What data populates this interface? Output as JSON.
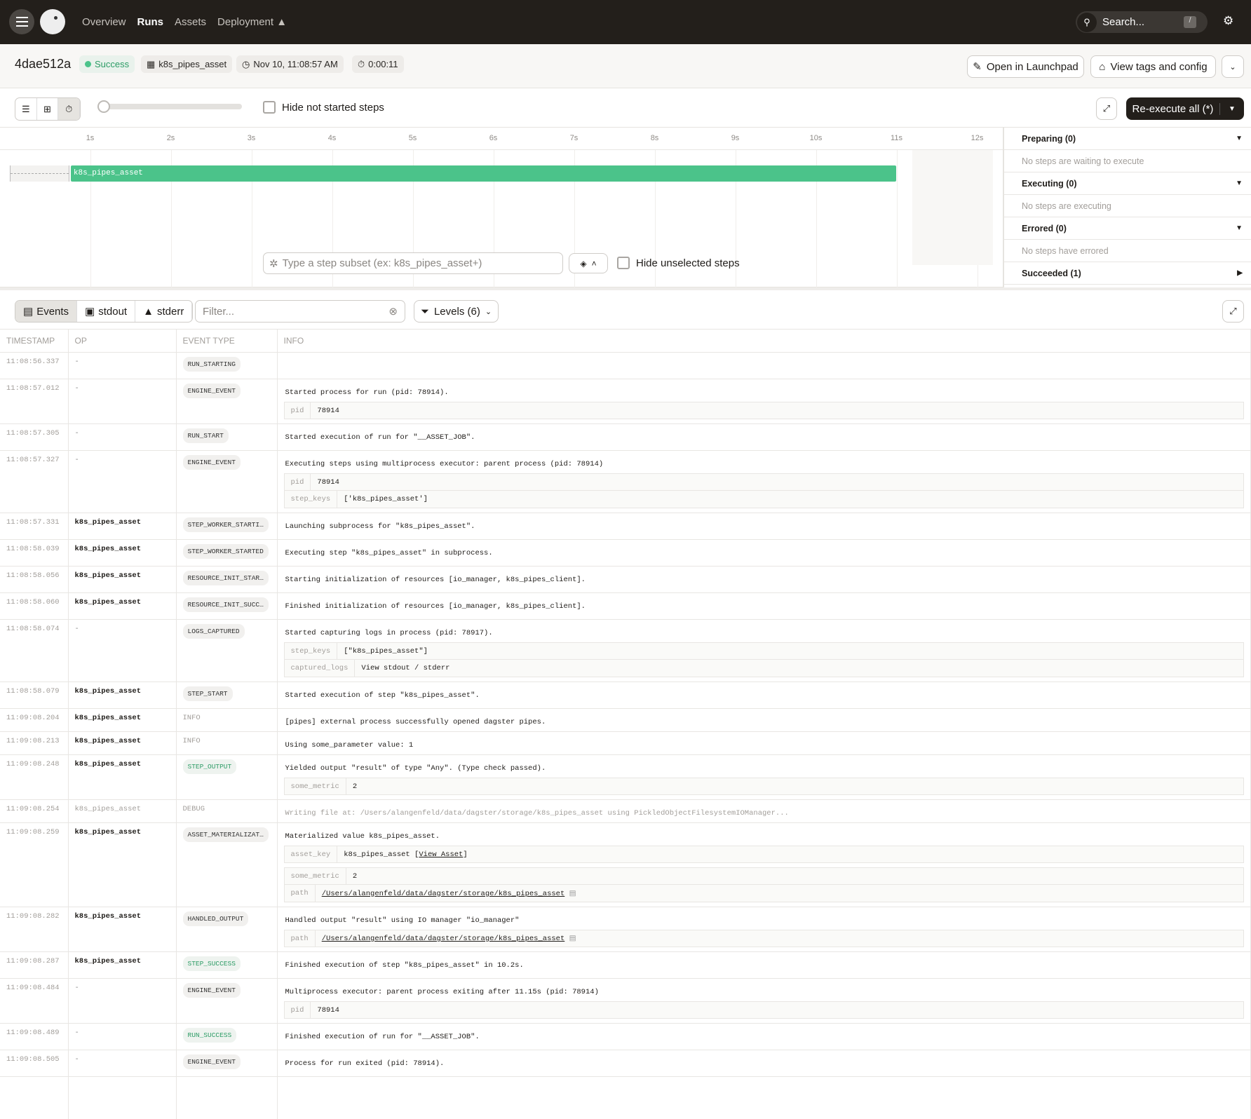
{
  "nav": {
    "links": [
      "Overview",
      "Runs",
      "Assets",
      "Deployment"
    ],
    "active": "Runs",
    "search_placeholder": "Search...",
    "search_shortcut": "/"
  },
  "run": {
    "id": "4dae512a",
    "status": "Success",
    "job": "k8s_pipes_asset",
    "started": "Nov 10, 11:08:57 AM",
    "duration": "0:00:11"
  },
  "actions": {
    "launchpad": "Open in Launchpad",
    "tags": "View tags and config",
    "reexecute": "Re-execute all (*)"
  },
  "toolbar": {
    "hide_not_started": "Hide not started steps"
  },
  "gantt": {
    "ticks": [
      "1s",
      "2s",
      "3s",
      "4s",
      "5s",
      "6s",
      "7s",
      "8s",
      "9s",
      "10s",
      "11s",
      "12s"
    ],
    "step": "k8s_pipes_asset",
    "step_start_s": 0.76,
    "step_end_s": 11.0,
    "pending_start_s": 0,
    "subset_placeholder": "Type a step subset (ex: k8s_pipes_asset+)",
    "hide_unselected": "Hide unselected steps",
    "bar_color": "#4bc38a"
  },
  "sidebar": [
    {
      "title": "Preparing (0)",
      "empty": "No steps are waiting to execute",
      "expanded": true
    },
    {
      "title": "Executing (0)",
      "empty": "No steps are executing",
      "expanded": true
    },
    {
      "title": "Errored (0)",
      "empty": "No steps have errored",
      "expanded": true
    },
    {
      "title": "Succeeded (1)",
      "empty": null,
      "expanded": false
    }
  ],
  "logs": {
    "tabs": [
      "Events",
      "stdout",
      "stderr"
    ],
    "filter_placeholder": "Filter...",
    "levels": "Levels (6)",
    "columns": [
      "TIMESTAMP",
      "OP",
      "EVENT TYPE",
      "INFO"
    ],
    "rows": [
      {
        "ts": "11:08:56.337",
        "op": "-",
        "type": "RUN_STARTING",
        "msg": "",
        "kv": []
      },
      {
        "ts": "11:08:57.012",
        "op": "-",
        "type": "ENGINE_EVENT",
        "msg": "Started process for run (pid: 78914).",
        "kv": [
          [
            "pid",
            "78914"
          ]
        ]
      },
      {
        "ts": "11:08:57.305",
        "op": "-",
        "type": "RUN_START",
        "msg": "Started execution of run for \"__ASSET_JOB\".",
        "kv": []
      },
      {
        "ts": "11:08:57.327",
        "op": "-",
        "type": "ENGINE_EVENT",
        "msg": "Executing steps using multiprocess executor: parent process (pid: 78914)",
        "kv": [
          [
            "pid",
            "78914"
          ],
          [
            "step_keys",
            "['k8s_pipes_asset']"
          ]
        ]
      },
      {
        "ts": "11:08:57.331",
        "op": "k8s_pipes_asset",
        "type": "STEP_WORKER_STARTI…",
        "msg": "Launching subprocess for \"k8s_pipes_asset\".",
        "kv": []
      },
      {
        "ts": "11:08:58.039",
        "op": "k8s_pipes_asset",
        "type": "STEP_WORKER_STARTED",
        "msg": "Executing step \"k8s_pipes_asset\" in subprocess.",
        "kv": []
      },
      {
        "ts": "11:08:58.056",
        "op": "k8s_pipes_asset",
        "type": "RESOURCE_INIT_STAR…",
        "msg": "Starting initialization of resources [io_manager, k8s_pipes_client].",
        "kv": []
      },
      {
        "ts": "11:08:58.060",
        "op": "k8s_pipes_asset",
        "type": "RESOURCE_INIT_SUCC…",
        "msg": "Finished initialization of resources [io_manager, k8s_pipes_client].",
        "kv": []
      },
      {
        "ts": "11:08:58.074",
        "op": "-",
        "type": "LOGS_CAPTURED",
        "msg": "Started capturing logs in process (pid: 78917).",
        "kv": [
          [
            "step_keys",
            "[\"k8s_pipes_asset\"]"
          ],
          [
            "captured_logs",
            "View stdout / stderr"
          ]
        ]
      },
      {
        "ts": "11:08:58.079",
        "op": "k8s_pipes_asset",
        "type": "STEP_START",
        "msg": "Started execution of step \"k8s_pipes_asset\".",
        "kv": []
      },
      {
        "ts": "11:09:08.204",
        "op": "k8s_pipes_asset",
        "type": "INFO",
        "plain": true,
        "msg": "[pipes] external process successfully opened dagster pipes.",
        "kv": []
      },
      {
        "ts": "11:09:08.213",
        "op": "k8s_pipes_asset",
        "type": "INFO",
        "plain": true,
        "msg": "Using some_parameter value: 1",
        "kv": []
      },
      {
        "ts": "11:09:08.248",
        "op": "k8s_pipes_asset",
        "type": "STEP_OUTPUT",
        "success": true,
        "msg": "Yielded output \"result\" of type \"Any\". (Type check passed).",
        "kv": [
          [
            "some_metric",
            "2"
          ]
        ]
      },
      {
        "ts": "11:09:08.254",
        "op": "k8s_pipes_asset",
        "type": "DEBUG",
        "plain": true,
        "debug": true,
        "msg": "Writing file at: /Users/alangenfeld/data/dagster/storage/k8s_pipes_asset using PickledObjectFilesystemIOManager...",
        "kv": []
      },
      {
        "ts": "11:09:08.259",
        "op": "k8s_pipes_asset",
        "type": "ASSET_MATERIALIZAT…",
        "msg": "Materialized value k8s_pipes_asset.",
        "kv": [
          [
            "asset_key",
            "k8s_pipes_asset",
            "View Asset"
          ],
          [
            "some_metric",
            "2"
          ],
          [
            "path",
            "/Users/alangenfeld/data/dagster/storage/k8s_pipes_asset"
          ]
        ],
        "kv_sep": [
          1
        ]
      },
      {
        "ts": "11:09:08.282",
        "op": "k8s_pipes_asset",
        "type": "HANDLED_OUTPUT",
        "msg": "Handled output \"result\" using IO manager \"io_manager\"",
        "kv": [
          [
            "path",
            "/Users/alangenfeld/data/dagster/storage/k8s_pipes_asset"
          ]
        ]
      },
      {
        "ts": "11:09:08.287",
        "op": "k8s_pipes_asset",
        "type": "STEP_SUCCESS",
        "success": true,
        "msg": "Finished execution of step \"k8s_pipes_asset\" in 10.2s.",
        "kv": []
      },
      {
        "ts": "11:09:08.484",
        "op": "-",
        "type": "ENGINE_EVENT",
        "msg": "Multiprocess executor: parent process exiting after 11.15s (pid: 78914)",
        "kv": [
          [
            "pid",
            "78914"
          ]
        ]
      },
      {
        "ts": "11:09:08.489",
        "op": "-",
        "type": "RUN_SUCCESS",
        "success": true,
        "msg": "Finished execution of run for \"__ASSET_JOB\".",
        "kv": []
      },
      {
        "ts": "11:09:08.505",
        "op": "-",
        "type": "ENGINE_EVENT",
        "msg": "Process for run exited (pid: 78914).",
        "kv": []
      }
    ]
  }
}
